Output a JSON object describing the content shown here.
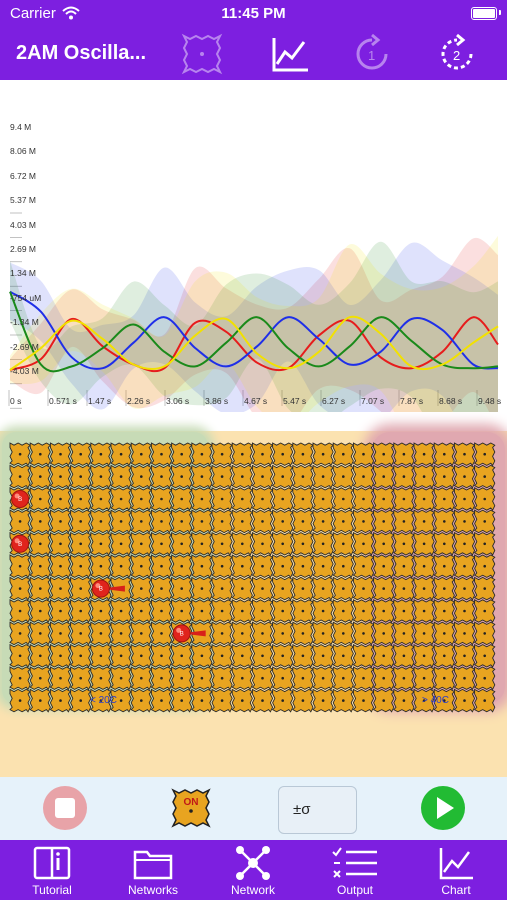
{
  "status": {
    "carrier": "Carrier",
    "time": "11:45 PM"
  },
  "header": {
    "title": "2AM Oscilla...",
    "icons": [
      "cell-icon",
      "chart-icon",
      "rotate-1-icon",
      "rotate-2-icon"
    ]
  },
  "chart": {
    "y_ticks": [
      "9.4 M",
      "8.06 M",
      "6.72 M",
      "5.37 M",
      "4.03 M",
      "2.69 M",
      "1.34 M",
      "-754 uM",
      "-1.34 M",
      "-2.69 M",
      "-4.03 M"
    ],
    "x_ticks": [
      "0 s",
      "0.571 s",
      "1.47 s",
      "2.26 s",
      "3.06 s",
      "3.86 s",
      "4.67 s",
      "5.47 s",
      "6.27 s",
      "7.07 s",
      "7.87 s",
      "8.68 s",
      "9.48 s"
    ]
  },
  "chart_data": {
    "type": "line",
    "title": "",
    "xlabel": "",
    "ylabel": "",
    "ylim": [
      -4.03,
      9.4
    ],
    "xlim": [
      0,
      9.48
    ],
    "grid": false,
    "note": "",
    "series": [
      {
        "color": "#e61c1c",
        "x": [
          0,
          0.6,
          1.2,
          1.8,
          2.4,
          3.0,
          3.6,
          4.2,
          4.8,
          5.4,
          6.0,
          6.6,
          7.2,
          7.8,
          8.4,
          9.0,
          9.48
        ],
        "values": [
          0,
          0.6,
          2.8,
          1.3,
          0.3,
          0.1,
          2.6,
          2.1,
          0.4,
          0.1,
          1.9,
          2.7,
          0.7,
          0.1,
          1.0,
          2.9,
          1.4
        ]
      },
      {
        "color": "#1f2fe8",
        "x": [
          0,
          0.6,
          1.2,
          1.8,
          2.4,
          3.0,
          3.6,
          4.2,
          4.8,
          5.4,
          6.0,
          6.6,
          7.2,
          7.8,
          8.4,
          9.0,
          9.48
        ],
        "values": [
          4.3,
          3.2,
          0.7,
          0.1,
          1.5,
          2.9,
          1.2,
          0.2,
          1.3,
          2.9,
          1.7,
          0.3,
          1.0,
          2.8,
          2.2,
          0.3,
          0.1
        ]
      },
      {
        "color": "#1a8a1a",
        "x": [
          0,
          0.6,
          1.2,
          1.8,
          2.4,
          3.0,
          3.6,
          4.2,
          4.8,
          5.4,
          6.0,
          6.6,
          7.2,
          7.8,
          8.4,
          9.0,
          9.48
        ],
        "values": [
          4.3,
          0.3,
          0.2,
          1.2,
          2.5,
          1.0,
          0.2,
          1.5,
          2.9,
          1.2,
          0.2,
          1.3,
          2.9,
          1.6,
          0.3,
          0.1,
          0.2
        ]
      },
      {
        "color": "#f2e100",
        "x": [
          0,
          0.6,
          1.2,
          1.8,
          2.4,
          3.0,
          3.6,
          4.2,
          4.8,
          5.4,
          6.0,
          6.6,
          7.2,
          7.8,
          8.4,
          9.0,
          9.48
        ],
        "values": [
          0,
          1.2,
          2.7,
          1.7,
          0.3,
          0.2,
          1.9,
          2.8,
          0.9,
          0.1,
          1.0,
          2.9,
          2.0,
          0.2,
          0.3,
          1.5,
          2.4
        ]
      }
    ]
  },
  "board": {
    "cold_label": "< 20C",
    "hot_label": "> 40C",
    "grid_cols": 24,
    "grid_rows": 12,
    "agents": [
      {
        "col": 0,
        "row": 2,
        "kind": "round",
        "label": "B"
      },
      {
        "col": 0,
        "row": 4,
        "kind": "round",
        "label": "B"
      },
      {
        "col": 4,
        "row": 6,
        "kind": "tail",
        "label": "B"
      },
      {
        "col": 8,
        "row": 8,
        "kind": "tail",
        "label": "B"
      }
    ]
  },
  "controls": {
    "stop_label": "",
    "on_label": "ON",
    "sigma_label": "±σ",
    "play_label": ""
  },
  "tabs": [
    {
      "label": "Tutorial",
      "icon": "book-icon"
    },
    {
      "label": "Networks",
      "icon": "folder-icon"
    },
    {
      "label": "Network",
      "icon": "network-icon"
    },
    {
      "label": "Output",
      "icon": "list-icon"
    },
    {
      "label": "Chart",
      "icon": "chart-icon"
    }
  ],
  "colors": {
    "accent": "#7d1fe0",
    "board_bg": "#fbe2b0",
    "cell": "#e8a420",
    "controls_bg": "#e6f2fa",
    "play": "#22bb33",
    "stop": "#e8a3a8"
  }
}
